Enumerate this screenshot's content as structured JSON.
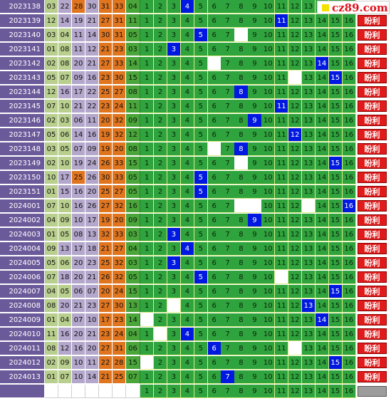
{
  "watermark": {
    "text": "cz89.com"
  },
  "result_label": "盼利",
  "colors": {
    "issue_bg": "#6b5a9a",
    "red_green": "#b9cf8e",
    "red_purple": "#b3a7cc",
    "red_orange": "#e0751f",
    "position_green": "#2fa33d",
    "hit_blue": "#0018e0",
    "badge_red": "#e01b1b"
  },
  "rows": [
    {
      "issue": "2023138",
      "reds": [
        "03",
        "22",
        "28",
        "30",
        "31",
        "33"
      ],
      "blue": "04",
      "hits": [
        4
      ],
      "miss": [],
      "badge": true
    },
    {
      "issue": "2023139",
      "reds": [
        "12",
        "14",
        "19",
        "21",
        "27",
        "31"
      ],
      "blue": "11",
      "hits": [
        11
      ],
      "miss": [],
      "badge": true
    },
    {
      "issue": "2023140",
      "reds": [
        "03",
        "04",
        "11",
        "14",
        "30",
        "31"
      ],
      "blue": "05",
      "hits": [
        5
      ],
      "miss": [
        8
      ],
      "badge": true
    },
    {
      "issue": "2023141",
      "reds": [
        "01",
        "08",
        "11",
        "12",
        "21",
        "23"
      ],
      "blue": "03",
      "hits": [
        3
      ],
      "miss": [],
      "badge": true
    },
    {
      "issue": "2023142",
      "reds": [
        "02",
        "08",
        "20",
        "21",
        "27",
        "33"
      ],
      "blue": "14",
      "hits": [
        14
      ],
      "miss": [
        6
      ],
      "badge": true
    },
    {
      "issue": "2023143",
      "reds": [
        "05",
        "07",
        "09",
        "16",
        "23",
        "30"
      ],
      "blue": "15",
      "hits": [
        15
      ],
      "miss": [
        12
      ],
      "badge": true
    },
    {
      "issue": "2023144",
      "reds": [
        "12",
        "16",
        "17",
        "22",
        "25",
        "27"
      ],
      "blue": "08",
      "hits": [
        8
      ],
      "miss": [],
      "badge": true
    },
    {
      "issue": "2023145",
      "reds": [
        "07",
        "10",
        "21",
        "22",
        "23",
        "24"
      ],
      "blue": "11",
      "hits": [
        11
      ],
      "miss": [],
      "badge": true
    },
    {
      "issue": "2023146",
      "reds": [
        "02",
        "03",
        "06",
        "11",
        "20",
        "32"
      ],
      "blue": "09",
      "hits": [
        9
      ],
      "miss": [],
      "badge": true
    },
    {
      "issue": "2023147",
      "reds": [
        "05",
        "06",
        "14",
        "16",
        "19",
        "32"
      ],
      "blue": "12",
      "hits": [
        12
      ],
      "miss": [],
      "badge": true
    },
    {
      "issue": "2023148",
      "reds": [
        "03",
        "05",
        "07",
        "09",
        "19",
        "20"
      ],
      "blue": "08",
      "hits": [
        8
      ],
      "miss": [
        6
      ],
      "badge": true
    },
    {
      "issue": "2023149",
      "reds": [
        "02",
        "10",
        "19",
        "24",
        "26",
        "33"
      ],
      "blue": "15",
      "hits": [
        15
      ],
      "miss": [
        8
      ],
      "badge": true
    },
    {
      "issue": "2023150",
      "reds": [
        "10",
        "17",
        "25",
        "26",
        "30",
        "33"
      ],
      "blue": "05",
      "hits": [
        5
      ],
      "miss": [],
      "badge": true
    },
    {
      "issue": "2023151",
      "reds": [
        "01",
        "15",
        "16",
        "20",
        "25",
        "27"
      ],
      "blue": "05",
      "hits": [
        5
      ],
      "miss": [],
      "badge": true
    },
    {
      "issue": "2024001",
      "reds": [
        "07",
        "10",
        "16",
        "26",
        "27",
        "32"
      ],
      "blue": "16",
      "hits": [
        16
      ],
      "miss": [
        8,
        9,
        13
      ],
      "badge": true
    },
    {
      "issue": "2024002",
      "reds": [
        "04",
        "09",
        "10",
        "17",
        "19",
        "20"
      ],
      "blue": "09",
      "hits": [
        9
      ],
      "miss": [],
      "badge": true
    },
    {
      "issue": "2024003",
      "reds": [
        "01",
        "05",
        "08",
        "13",
        "32",
        "33"
      ],
      "blue": "03",
      "hits": [
        3
      ],
      "miss": [],
      "badge": true
    },
    {
      "issue": "2024004",
      "reds": [
        "09",
        "13",
        "17",
        "18",
        "21",
        "27"
      ],
      "blue": "04",
      "hits": [
        4
      ],
      "miss": [],
      "badge": true
    },
    {
      "issue": "2024005",
      "reds": [
        "05",
        "06",
        "20",
        "23",
        "25",
        "32"
      ],
      "blue": "03",
      "hits": [
        3
      ],
      "miss": [],
      "badge": true
    },
    {
      "issue": "2024006",
      "reds": [
        "07",
        "18",
        "20",
        "21",
        "26",
        "32"
      ],
      "blue": "05",
      "hits": [
        5
      ],
      "miss": [
        11
      ],
      "badge": true
    },
    {
      "issue": "2024007",
      "reds": [
        "04",
        "05",
        "06",
        "07",
        "20",
        "24"
      ],
      "blue": "15",
      "hits": [
        15
      ],
      "miss": [],
      "badge": true
    },
    {
      "issue": "2024008",
      "reds": [
        "08",
        "20",
        "21",
        "23",
        "27",
        "30"
      ],
      "blue": "13",
      "hits": [
        13
      ],
      "miss": [
        3
      ],
      "badge": true
    },
    {
      "issue": "2024009",
      "reds": [
        "01",
        "04",
        "07",
        "10",
        "17",
        "23"
      ],
      "blue": "14",
      "hits": [
        14
      ],
      "miss": [
        1
      ],
      "badge": true
    },
    {
      "issue": "2024010",
      "reds": [
        "11",
        "16",
        "20",
        "21",
        "23",
        "24"
      ],
      "blue": "04",
      "hits": [
        4
      ],
      "miss": [
        2
      ],
      "badge": true
    },
    {
      "issue": "2024011",
      "reds": [
        "08",
        "12",
        "16",
        "20",
        "27",
        "31"
      ],
      "blue": "06",
      "hits": [
        6
      ],
      "miss": [
        12
      ],
      "badge": true
    },
    {
      "issue": "2024012",
      "reds": [
        "02",
        "09",
        "10",
        "11",
        "22",
        "28"
      ],
      "blue": "15",
      "hits": [
        15
      ],
      "miss": [
        1
      ],
      "badge": true
    },
    {
      "issue": "2024013",
      "reds": [
        "01",
        "07",
        "10",
        "14",
        "21",
        "25"
      ],
      "blue": "07",
      "hits": [
        7
      ],
      "miss": [],
      "badge": true
    },
    {
      "issue": "",
      "reds": [
        "",
        "",
        "",
        "",
        "",
        ""
      ],
      "blue": "",
      "hits": [],
      "miss": [],
      "badge": false
    }
  ]
}
